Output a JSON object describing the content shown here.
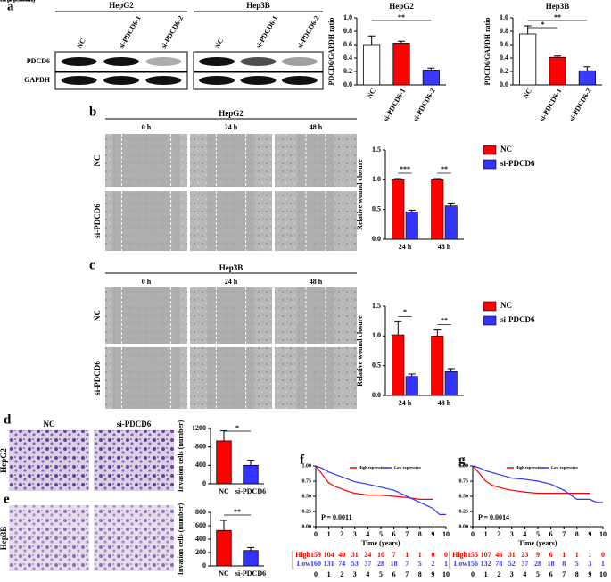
{
  "chart_data": [
    {
      "type": "bar",
      "title": "HepG2",
      "y_label": "PDCD6/GAPDH ratio",
      "categories": [
        "NC",
        "si-PDCD6-1",
        "si-PDCD6-2"
      ],
      "values": [
        0.6,
        0.62,
        0.22
      ],
      "errors": [
        0.13,
        0.03,
        0.03
      ],
      "colors": [
        "#ffffff",
        "#ff0000",
        "#3a3aff"
      ],
      "ylim": [
        0,
        1
      ],
      "yticks": [
        {
          "value": 0,
          "label": "0.0"
        },
        0.2,
        0.4,
        0.6,
        0.8,
        {
          "value": 1,
          "label": "1.0"
        }
      ],
      "annotations": [
        {
          "text": "**",
          "between": [
            "NC",
            "si-PDCD6-2"
          ]
        }
      ]
    },
    {
      "type": "bar",
      "title": "Hep3B",
      "y_label": "PDCD6/GAPDH ratio",
      "categories": [
        "NC",
        "si-PDCD6-1",
        "si-PDCD6-2"
      ],
      "values": [
        0.76,
        0.41,
        0.21
      ],
      "errors": [
        0.12,
        0.02,
        0.06
      ],
      "colors": [
        "#ffffff",
        "#ff0000",
        "#3a3aff"
      ],
      "ylim": [
        0,
        1
      ],
      "yticks": [
        {
          "value": 0,
          "label": "0.0"
        },
        0.2,
        0.4,
        0.6,
        0.8,
        {
          "value": 1,
          "label": "1.0"
        }
      ],
      "annotations": [
        {
          "text": "*",
          "between": [
            "NC",
            "si-PDCD6-1"
          ]
        },
        {
          "text": "**",
          "between": [
            "NC",
            "si-PDCD6-2"
          ]
        }
      ]
    },
    {
      "type": "bar",
      "y_label": "Relative wound closure",
      "categories": [
        "24 h",
        "48 h"
      ],
      "series": [
        {
          "name": "NC",
          "color": "#ff0000",
          "values": [
            1.0,
            1.0
          ],
          "errors": [
            0.02,
            0.02
          ]
        },
        {
          "name": "si-PDCD6",
          "color": "#3333ff",
          "values": [
            0.46,
            0.56
          ],
          "errors": [
            0.03,
            0.05
          ]
        }
      ],
      "ylim": [
        0,
        1.5
      ],
      "yticks": [
        {
          "value": 0,
          "label": "0.0"
        },
        0.5,
        {
          "value": 1,
          "label": "1.0"
        },
        1.5
      ],
      "significance": [
        "***",
        "**"
      ]
    },
    {
      "type": "bar",
      "y_label": "Relative wound closure",
      "categories": [
        "24 h",
        "48 h"
      ],
      "series": [
        {
          "name": "NC",
          "color": "#ff0000",
          "values": [
            1.02,
            1.0
          ],
          "errors": [
            0.22,
            0.1
          ]
        },
        {
          "name": "si-PDCD6",
          "color": "#3333ff",
          "values": [
            0.32,
            0.4
          ],
          "errors": [
            0.04,
            0.05
          ]
        }
      ],
      "ylim": [
        0,
        1.5
      ],
      "yticks": [
        {
          "value": 0,
          "label": "0.0"
        },
        0.5,
        {
          "value": 1,
          "label": "1.0"
        },
        1.5
      ],
      "significance": [
        "*",
        "**"
      ]
    },
    {
      "type": "bar",
      "y_label": "Invasion cells (number)",
      "categories": [
        "NC",
        "si-PDCD6"
      ],
      "values": [
        930,
        400
      ],
      "errors": [
        220,
        110
      ],
      "colors": [
        "#ff0000",
        "#3333ff"
      ],
      "ylim": [
        0,
        1200
      ],
      "yticks": [
        0,
        400,
        800,
        1200
      ],
      "annotations": [
        {
          "text": "*",
          "between": [
            "NC",
            "si-PDCD6"
          ]
        }
      ]
    },
    {
      "type": "bar",
      "y_label": "Invasion cells (number)",
      "categories": [
        "NC",
        "si-PDCD6"
      ],
      "values": [
        530,
        230
      ],
      "errors": [
        150,
        45
      ],
      "colors": [
        "#ff0000",
        "#3333ff"
      ],
      "ylim": [
        0,
        800
      ],
      "yticks": [
        0,
        200,
        400,
        600,
        800
      ],
      "annotations": [
        {
          "text": "**",
          "between": [
            "NC",
            "si-PDCD6"
          ]
        }
      ]
    },
    {
      "type": "line",
      "x_label": "Time (years)",
      "y_label": "Overall survival probability",
      "x": [
        0,
        0.5,
        1,
        1.5,
        2,
        2.5,
        3,
        4,
        5,
        6,
        7,
        8,
        9,
        9.5,
        10
      ],
      "series": [
        {
          "name": "High expression",
          "color": "#ff0000",
          "values": [
            1.0,
            0.86,
            0.72,
            0.66,
            0.62,
            0.58,
            0.55,
            0.52,
            0.52,
            0.5,
            0.48,
            0.45,
            0.45,
            null,
            null
          ]
        },
        {
          "name": "Low expression",
          "color": "#3333ff",
          "values": [
            1.0,
            0.96,
            0.9,
            0.86,
            0.82,
            0.78,
            0.74,
            0.7,
            0.65,
            0.6,
            0.5,
            0.4,
            0.3,
            0.2,
            0.2
          ]
        }
      ],
      "xlim": [
        0,
        10
      ],
      "xticks": [
        0,
        1,
        2,
        3,
        4,
        5,
        6,
        7,
        8,
        9,
        10
      ],
      "ylim": [
        0,
        1
      ],
      "yticks": [
        {
          "value": 0,
          "label": "0.00"
        },
        0.25,
        {
          "value": 0.5,
          "label": "0.50"
        },
        0.75,
        {
          "value": 1,
          "label": "1.00"
        }
      ],
      "annotation": "P = 0.0011",
      "risk_table": [
        {
          "name": "High",
          "color": "#ff0000",
          "values": [
            159,
            104,
            40,
            31,
            24,
            10,
            7,
            1,
            1,
            0,
            0
          ]
        },
        {
          "name": "Low",
          "color": "#3333ff",
          "values": [
            160,
            131,
            74,
            53,
            37,
            28,
            18,
            7,
            5,
            2,
            1
          ]
        }
      ]
    },
    {
      "type": "line",
      "x_label": "Time (years)",
      "y_label": "Disease-specific survival probability",
      "x": [
        0,
        0.5,
        1,
        1.5,
        2,
        2.5,
        3,
        4,
        5,
        6,
        7,
        8,
        9,
        9.5,
        10
      ],
      "series": [
        {
          "name": "High expression",
          "color": "#ff0000",
          "values": [
            1.0,
            0.88,
            0.75,
            0.68,
            0.65,
            0.62,
            0.6,
            0.57,
            0.55,
            0.55,
            0.55,
            0.55,
            0.55,
            null,
            null
          ]
        },
        {
          "name": "Low expression",
          "color": "#3333ff",
          "values": [
            1.0,
            0.97,
            0.92,
            0.89,
            0.86,
            0.83,
            0.8,
            0.78,
            0.75,
            0.7,
            0.6,
            0.45,
            0.45,
            0.4,
            0.4
          ]
        }
      ],
      "xlim": [
        0,
        10
      ],
      "xticks": [
        0,
        1,
        2,
        3,
        4,
        5,
        6,
        7,
        8,
        9,
        10
      ],
      "ylim": [
        0,
        1
      ],
      "yticks": [
        {
          "value": 0,
          "label": "0.00"
        },
        0.25,
        {
          "value": 0.5,
          "label": "0.50"
        },
        0.75,
        {
          "value": 1,
          "label": "1.00"
        }
      ],
      "annotation": "P = 0.0014",
      "risk_table": [
        {
          "name": "High",
          "color": "#ff0000",
          "values": [
            155,
            107,
            46,
            31,
            23,
            9,
            6,
            1,
            1,
            1,
            0
          ]
        },
        {
          "name": "Low",
          "color": "#3333ff",
          "values": [
            156,
            132,
            78,
            52,
            37,
            28,
            18,
            8,
            5,
            3,
            1
          ]
        }
      ]
    }
  ],
  "figure": {
    "panel_labels": [
      "a",
      "b",
      "c",
      "d",
      "e",
      "f",
      "g"
    ],
    "blot": {
      "cell_lines": [
        "HepG2",
        "Hep3B"
      ],
      "lanes": [
        "NC",
        "si-PDCD6-1",
        "si-PDCD6-2"
      ],
      "proteins": [
        "PDCD6",
        "GAPDH"
      ]
    },
    "wound": [
      {
        "cell_line": "HepG2",
        "times": [
          "0 h",
          "24 h",
          "48 h"
        ],
        "groups": [
          "NC",
          "si-PDCD6"
        ]
      },
      {
        "cell_line": "Hep3B",
        "times": [
          "0 h",
          "24 h",
          "48 h"
        ],
        "groups": [
          "NC",
          "si-PDCD6"
        ]
      }
    ],
    "invasion": {
      "groups": [
        "NC",
        "si-PDCD6"
      ],
      "cell_lines": [
        "HepG2",
        "Hep3B"
      ]
    }
  }
}
